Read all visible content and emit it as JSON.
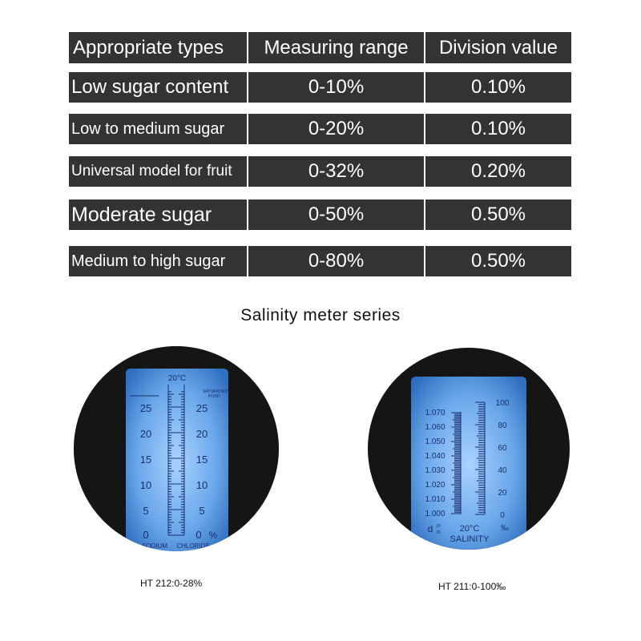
{
  "table": {
    "headers": [
      "Appropriate types",
      "Measuring range",
      "Division value"
    ],
    "rows": [
      {
        "type": "Low sugar content",
        "range": "0-10%",
        "division": "0.10%"
      },
      {
        "type": "Low to medium sugar",
        "range": "0-20%",
        "division": "0.10%"
      },
      {
        "type": "Universal model for fruit",
        "range": "0-32%",
        "division": "0.20%"
      },
      {
        "type": "Moderate sugar",
        "range": "0-50%",
        "division": "0.50%"
      },
      {
        "type": "Medium to high sugar",
        "range": "0-80%",
        "division": "0.50%"
      }
    ]
  },
  "section_title": "Salinity meter series",
  "meter_left": {
    "caption": "HT 212:0-28%",
    "temp": "20°C",
    "saturation_line1": "SATURATNON",
    "saturation_line2": "POINT",
    "scale": [
      "25",
      "20",
      "15",
      "10",
      "5",
      "0"
    ],
    "unit": "%",
    "bottom_left": "SODIUM",
    "bottom_right": "CHLORIDE"
  },
  "meter_right": {
    "caption": "HT 211:0-100‰",
    "left_scale": [
      "1.070",
      "1.060",
      "1.050",
      "1.040",
      "1.030",
      "1.020",
      "1.010",
      "1.000"
    ],
    "right_scale": [
      "100",
      "80",
      "60",
      "40",
      "20",
      "0"
    ],
    "d_label": "d",
    "d_sup": "20",
    "d_sub": "20",
    "temp": "20°C",
    "permille": "‰",
    "salinity": "SALINITY"
  },
  "colors": {
    "table_bg": "#333333",
    "table_text": "#ffffff",
    "meter_circle": "#151515",
    "meter_blue": "#7fb6f0",
    "scale_ink": "#1a2f6d"
  }
}
